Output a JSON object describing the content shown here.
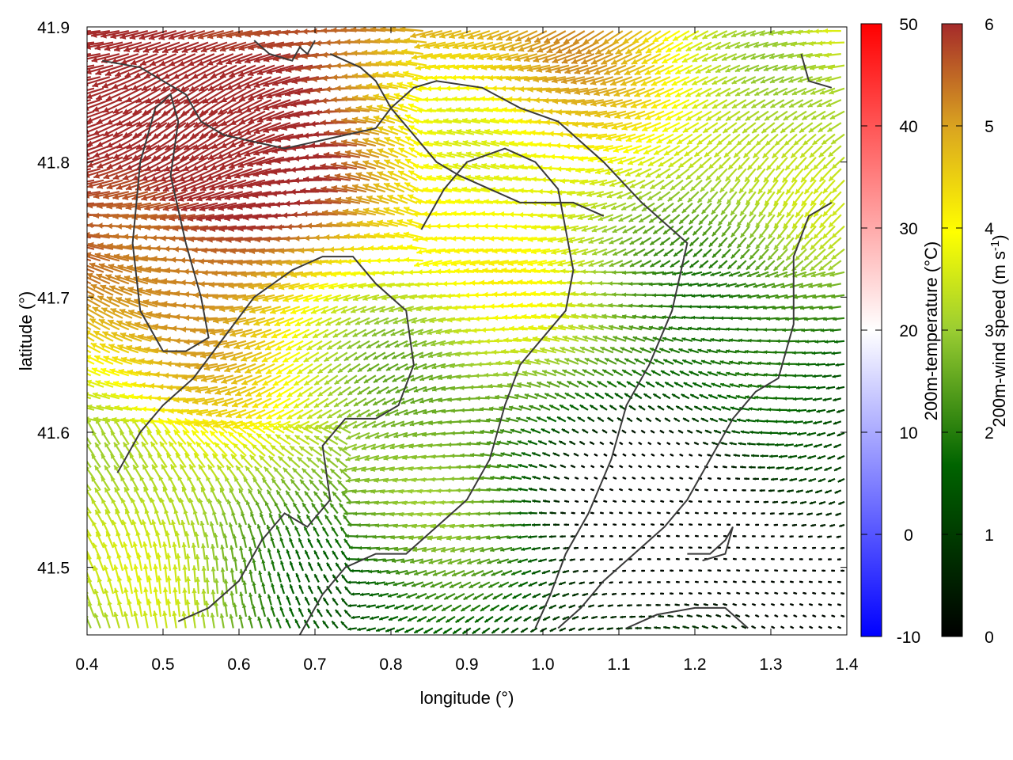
{
  "chart_data": {
    "type": "vector-field",
    "xlabel": "longitude (°)",
    "ylabel": "latitude (°)",
    "xlim": [
      0.4,
      1.4
    ],
    "ylim": [
      41.45,
      41.9
    ],
    "xticks": [
      "0.4",
      "0.5",
      "0.6",
      "0.7",
      "0.8",
      "0.9",
      "1.0",
      "1.1",
      "1.2",
      "1.3",
      "1.4"
    ],
    "yticks": [
      "41.5",
      "41.6",
      "41.7",
      "41.8",
      "41.9"
    ],
    "grid": false,
    "vector_field": {
      "description": "wind vectors colored by 200m wind speed",
      "lon_start": 0.405,
      "lon_step": 0.0125,
      "lat_start": 41.455,
      "lat_step": 0.0085,
      "dominant_direction": "westward (toward decreasing longitude)",
      "regions": [
        {
          "area": "north-west",
          "speed": 6.0
        },
        {
          "area": "centre",
          "speed": 4.0
        },
        {
          "area": "south-east",
          "speed": 1.5
        }
      ]
    },
    "colorbars": [
      {
        "label": "200m-temperature (°C)",
        "ticks": [
          "-10",
          "0",
          "10",
          "20",
          "30",
          "40",
          "50"
        ],
        "range": [
          -10,
          50
        ],
        "colors": [
          "#0000ff",
          "#ffffff",
          "#ff0000"
        ]
      },
      {
        "label": "200m-wind speed (m s-1)",
        "ticks": [
          "0",
          "1",
          "2",
          "3",
          "4",
          "5",
          "6"
        ],
        "range": [
          0,
          6
        ],
        "colors": [
          "#000000",
          "#006400",
          "#9acd32",
          "#ffff00",
          "#daa520",
          "#a52a2a"
        ]
      }
    ]
  }
}
